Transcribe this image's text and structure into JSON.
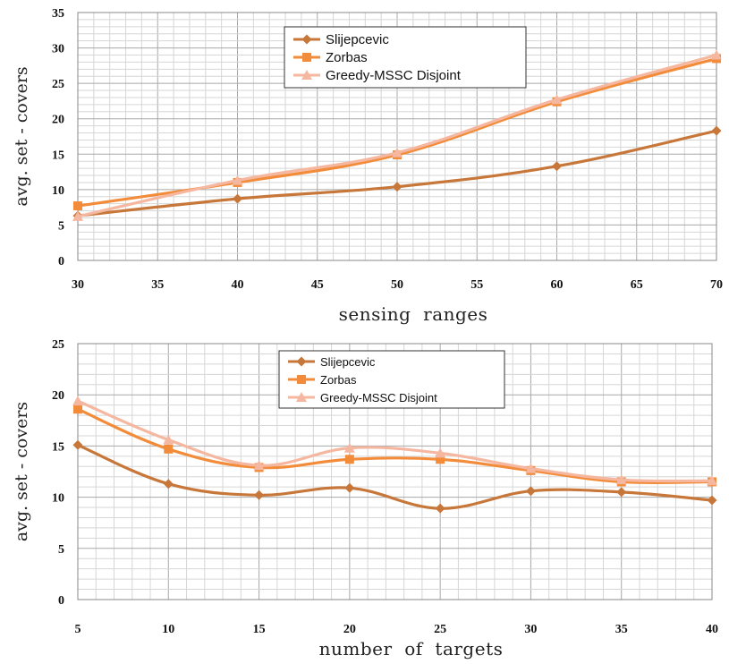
{
  "chart_data": [
    {
      "type": "line",
      "x": [
        30,
        40,
        50,
        60,
        70
      ],
      "series": [
        {
          "name": "Slijepcevic",
          "values": [
            6.3,
            8.7,
            10.4,
            13.3,
            18.3
          ],
          "color": "#c8773a",
          "marker": "diamond"
        },
        {
          "name": "Zorbas",
          "values": [
            7.7,
            11.0,
            14.9,
            22.4,
            28.5
          ],
          "color": "#f28c3a",
          "marker": "square"
        },
        {
          "name": "Greedy-MSSC Disjoint",
          "values": [
            6.2,
            11.3,
            15.2,
            22.7,
            29.0
          ],
          "color": "#f5b7a0",
          "marker": "triangle"
        }
      ],
      "xlabel": "sensing  ranges",
      "ylabel": "avg. set - covers",
      "xlim": [
        30,
        70
      ],
      "ylim": [
        0,
        35
      ],
      "xticks": [
        "30",
        "35",
        "40",
        "45",
        "50",
        "55",
        "60",
        "65",
        "70"
      ],
      "yticks": [
        "0",
        "5",
        "10",
        "15",
        "20",
        "25",
        "30",
        "35"
      ],
      "grid": true,
      "legend_position": "top-center"
    },
    {
      "type": "line",
      "x": [
        5,
        10,
        15,
        20,
        25,
        30,
        35,
        40
      ],
      "series": [
        {
          "name": "Slijepcevic",
          "values": [
            15.1,
            11.3,
            10.2,
            10.9,
            8.9,
            10.6,
            10.5,
            9.7
          ],
          "color": "#c8773a",
          "marker": "diamond"
        },
        {
          "name": "Zorbas",
          "values": [
            18.6,
            14.7,
            12.9,
            13.7,
            13.7,
            12.6,
            11.5,
            11.5
          ],
          "color": "#f28c3a",
          "marker": "square"
        },
        {
          "name": "Greedy-MSSC Disjoint",
          "values": [
            19.4,
            15.6,
            13.1,
            14.8,
            14.3,
            12.8,
            11.7,
            11.6
          ],
          "color": "#f5b7a0",
          "marker": "triangle"
        }
      ],
      "xlabel": "number  of  targets",
      "ylabel": "avg. set - covers",
      "xlim": [
        5,
        40
      ],
      "ylim": [
        0,
        25
      ],
      "xticks": [
        "5",
        "10",
        "15",
        "20",
        "25",
        "30",
        "35",
        "40"
      ],
      "yticks": [
        "0",
        "5",
        "10",
        "15",
        "20",
        "25"
      ],
      "grid": true,
      "legend_position": "top-center"
    }
  ]
}
